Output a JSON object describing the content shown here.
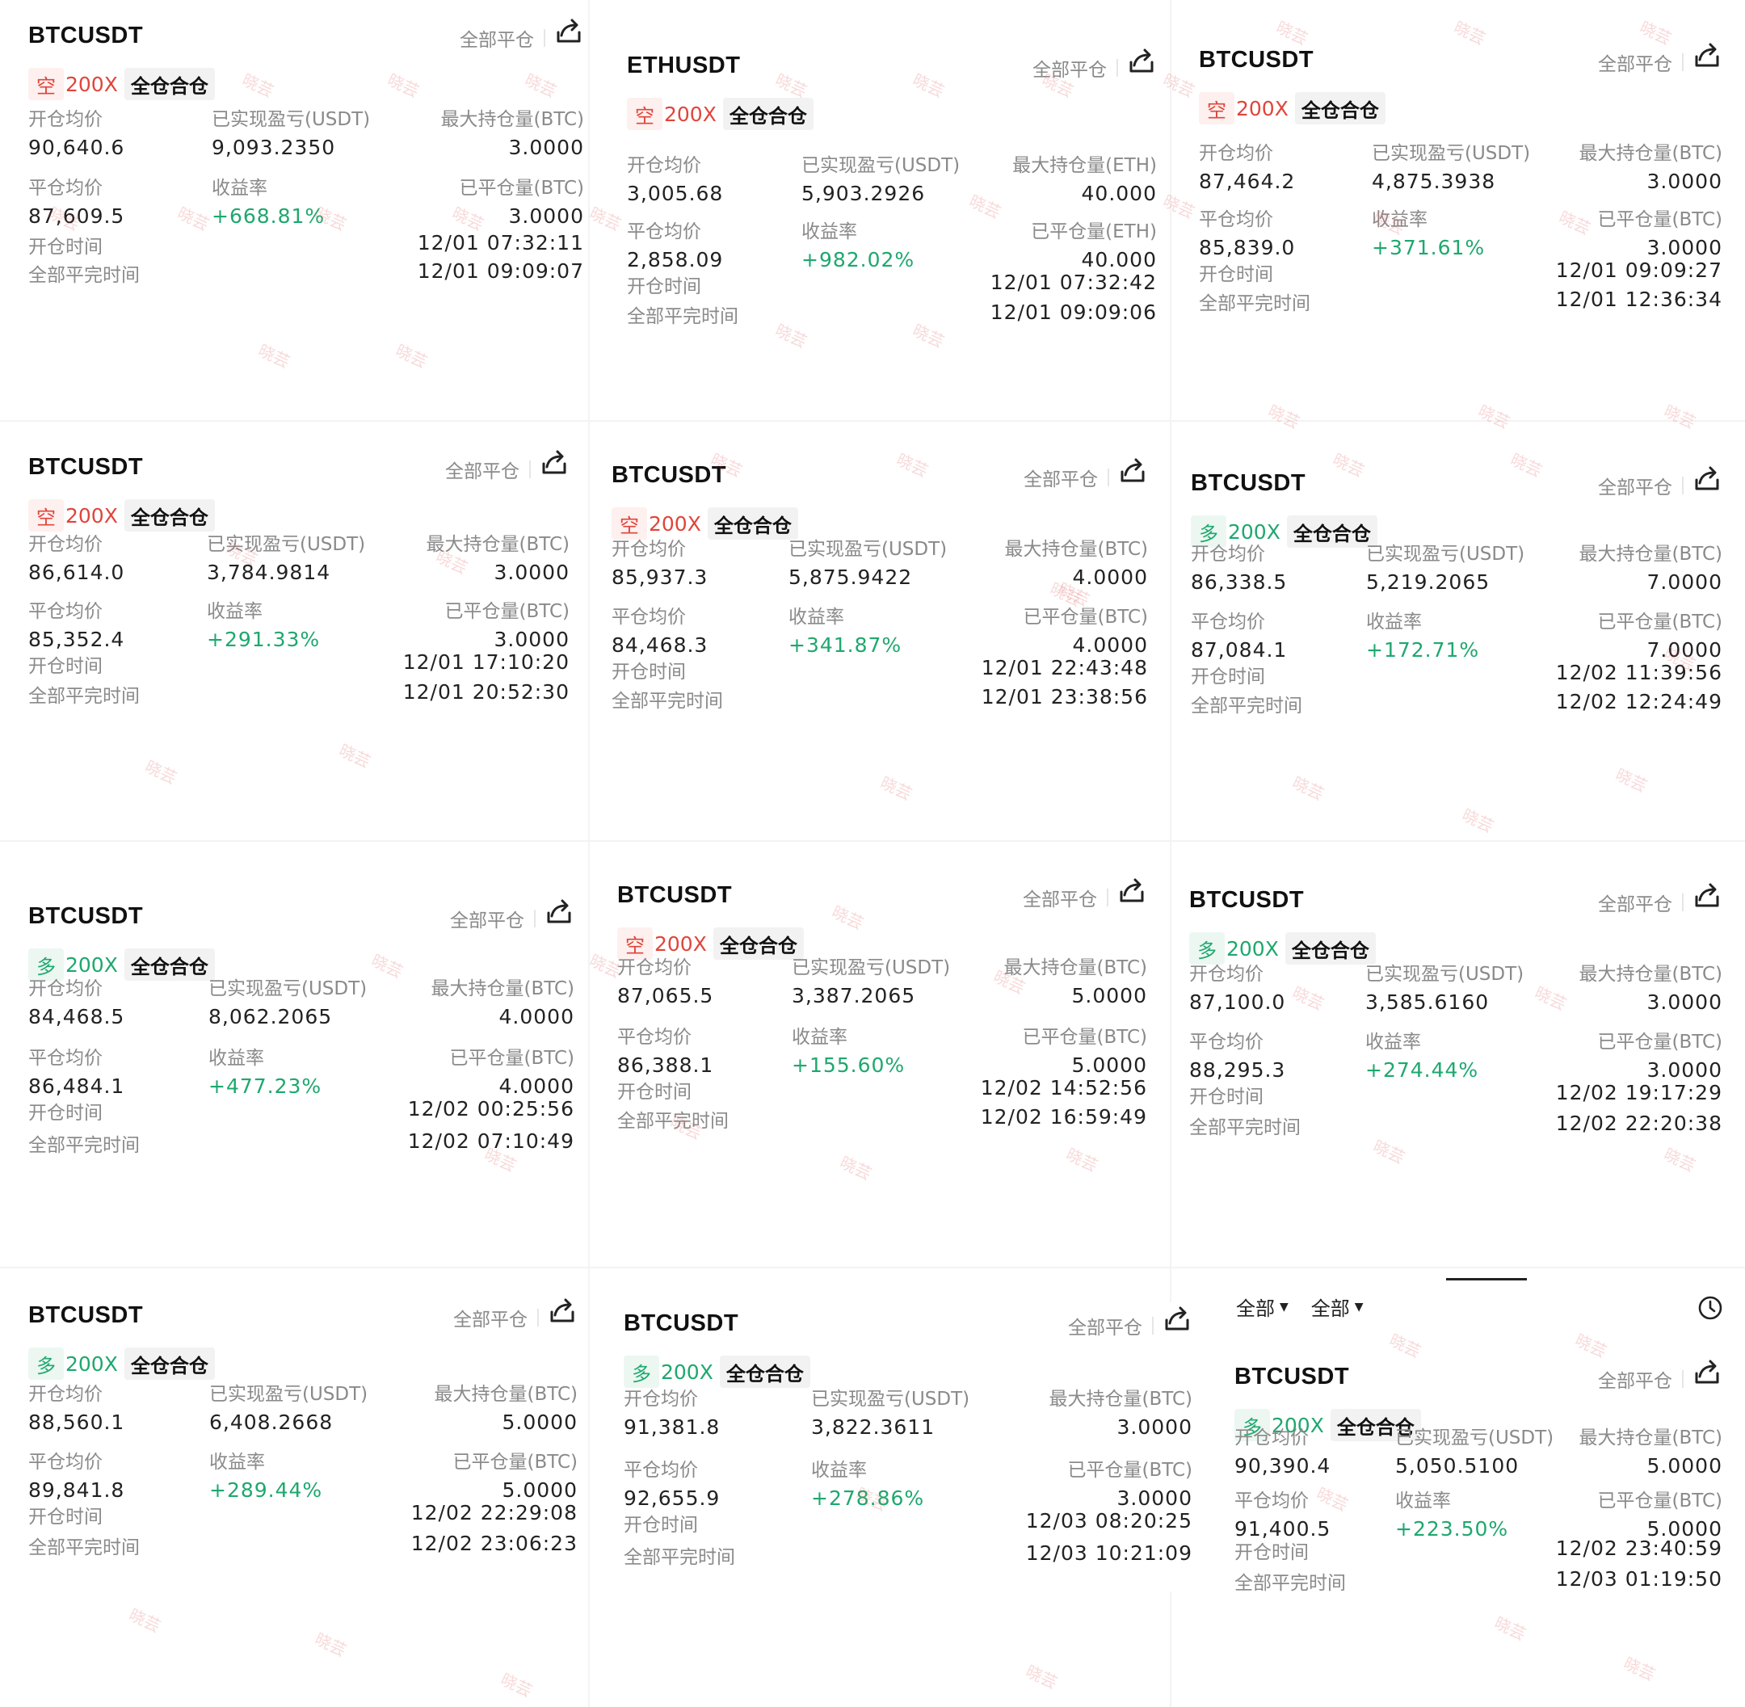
{
  "common": {
    "close_all_label": "全部平仓",
    "mode_label": "全仓合仓",
    "lbl_open_avg": "开仓均价",
    "lbl_realized_pnl": "已实现盈亏(USDT)",
    "lbl_close_avg": "平仓均价",
    "lbl_roi": "收益率",
    "lbl_open_time": "开仓时间",
    "lbl_close_time": "全部平完时间",
    "icons": {
      "share": "share-icon",
      "history": "clock-icon"
    },
    "colors": {
      "short": "#e0453a",
      "long": "#1ea86e"
    },
    "watermark_text": "晓芸"
  },
  "filters": {
    "filter1": "全部",
    "filter2": "全部"
  },
  "cards": [
    {
      "symbol": "BTCUSDT",
      "side": "空",
      "side_type": "short",
      "leverage": "200X",
      "open_avg": "90,640.6",
      "realized_pnl": "9,093.2350",
      "max_pos_label": "最大持仓量(BTC)",
      "max_pos": "3.0000",
      "close_avg": "87,609.5",
      "roi": "+668.81%",
      "closed_label": "已平仓量(BTC)",
      "closed_qty": "3.0000",
      "open_time": "12/01 07:32:11",
      "close_time": "12/01 09:09:07"
    },
    {
      "symbol": "ETHUSDT",
      "side": "空",
      "side_type": "short",
      "leverage": "200X",
      "open_avg": "3,005.68",
      "realized_pnl": "5,903.2926",
      "max_pos_label": "最大持仓量(ETH)",
      "max_pos": "40.000",
      "close_avg": "2,858.09",
      "roi": "+982.02%",
      "closed_label": "已平仓量(ETH)",
      "closed_qty": "40.000",
      "open_time": "12/01 07:32:42",
      "close_time": "12/01 09:09:06"
    },
    {
      "symbol": "BTCUSDT",
      "side": "空",
      "side_type": "short",
      "leverage": "200X",
      "open_avg": "87,464.2",
      "realized_pnl": "4,875.3938",
      "max_pos_label": "最大持仓量(BTC)",
      "max_pos": "3.0000",
      "close_avg": "85,839.0",
      "roi": "+371.61%",
      "closed_label": "已平仓量(BTC)",
      "closed_qty": "3.0000",
      "open_time": "12/01 09:09:27",
      "close_time": "12/01 12:36:34"
    },
    {
      "symbol": "BTCUSDT",
      "side": "空",
      "side_type": "short",
      "leverage": "200X",
      "open_avg": "86,614.0",
      "realized_pnl": "3,784.9814",
      "max_pos_label": "最大持仓量(BTC)",
      "max_pos": "3.0000",
      "close_avg": "85,352.4",
      "roi": "+291.33%",
      "closed_label": "已平仓量(BTC)",
      "closed_qty": "3.0000",
      "open_time": "12/01 17:10:20",
      "close_time": "12/01 20:52:30"
    },
    {
      "symbol": "BTCUSDT",
      "side": "空",
      "side_type": "short",
      "leverage": "200X",
      "open_avg": "85,937.3",
      "realized_pnl": "5,875.9422",
      "max_pos_label": "最大持仓量(BTC)",
      "max_pos": "4.0000",
      "close_avg": "84,468.3",
      "roi": "+341.87%",
      "closed_label": "已平仓量(BTC)",
      "closed_qty": "4.0000",
      "open_time": "12/01 22:43:48",
      "close_time": "12/01 23:38:56"
    },
    {
      "symbol": "BTCUSDT",
      "side": "多",
      "side_type": "long",
      "leverage": "200X",
      "open_avg": "86,338.5",
      "realized_pnl": "5,219.2065",
      "max_pos_label": "最大持仓量(BTC)",
      "max_pos": "7.0000",
      "close_avg": "87,084.1",
      "roi": "+172.71%",
      "closed_label": "已平仓量(BTC)",
      "closed_qty": "7.0000",
      "open_time": "12/02 11:39:56",
      "close_time": "12/02 12:24:49"
    },
    {
      "symbol": "BTCUSDT",
      "side": "多",
      "side_type": "long",
      "leverage": "200X",
      "open_avg": "84,468.5",
      "realized_pnl": "8,062.2065",
      "max_pos_label": "最大持仓量(BTC)",
      "max_pos": "4.0000",
      "close_avg": "86,484.1",
      "roi": "+477.23%",
      "closed_label": "已平仓量(BTC)",
      "closed_qty": "4.0000",
      "open_time": "12/02 00:25:56",
      "close_time": "12/02 07:10:49"
    },
    {
      "symbol": "BTCUSDT",
      "side": "空",
      "side_type": "short",
      "leverage": "200X",
      "open_avg": "87,065.5",
      "realized_pnl": "3,387.2065",
      "max_pos_label": "最大持仓量(BTC)",
      "max_pos": "5.0000",
      "close_avg": "86,388.1",
      "roi": "+155.60%",
      "closed_label": "已平仓量(BTC)",
      "closed_qty": "5.0000",
      "open_time": "12/02 14:52:56",
      "close_time": "12/02 16:59:49"
    },
    {
      "symbol": "BTCUSDT",
      "side": "多",
      "side_type": "long",
      "leverage": "200X",
      "open_avg": "87,100.0",
      "realized_pnl": "3,585.6160",
      "max_pos_label": "最大持仓量(BTC)",
      "max_pos": "3.0000",
      "close_avg": "88,295.3",
      "roi": "+274.44%",
      "closed_label": "已平仓量(BTC)",
      "closed_qty": "3.0000",
      "open_time": "12/02 19:17:29",
      "close_time": "12/02 22:20:38"
    },
    {
      "symbol": "BTCUSDT",
      "side": "多",
      "side_type": "long",
      "leverage": "200X",
      "open_avg": "88,560.1",
      "realized_pnl": "6,408.2668",
      "max_pos_label": "最大持仓量(BTC)",
      "max_pos": "5.0000",
      "close_avg": "89,841.8",
      "roi": "+289.44%",
      "closed_label": "已平仓量(BTC)",
      "closed_qty": "5.0000",
      "open_time": "12/02 22:29:08",
      "close_time": "12/02 23:06:23"
    },
    {
      "symbol": "BTCUSDT",
      "side": "多",
      "side_type": "long",
      "leverage": "200X",
      "open_avg": "91,381.8",
      "realized_pnl": "3,822.3611",
      "max_pos_label": "最大持仓量(BTC)",
      "max_pos": "3.0000",
      "close_avg": "92,655.9",
      "roi": "+278.86%",
      "closed_label": "已平仓量(BTC)",
      "closed_qty": "3.0000",
      "open_time": "12/03 08:20:25",
      "close_time": "12/03 10:21:09"
    },
    {
      "symbol": "BTCUSDT",
      "side": "多",
      "side_type": "long",
      "leverage": "200X",
      "open_avg": "90,390.4",
      "realized_pnl": "5,050.5100",
      "max_pos_label": "最大持仓量(BTC)",
      "max_pos": "5.0000",
      "close_avg": "91,400.5",
      "roi": "+223.50%",
      "closed_label": "已平仓量(BTC)",
      "closed_qty": "5.0000",
      "open_time": "12/02 23:40:59",
      "close_time": "12/03 01:19:50"
    }
  ]
}
